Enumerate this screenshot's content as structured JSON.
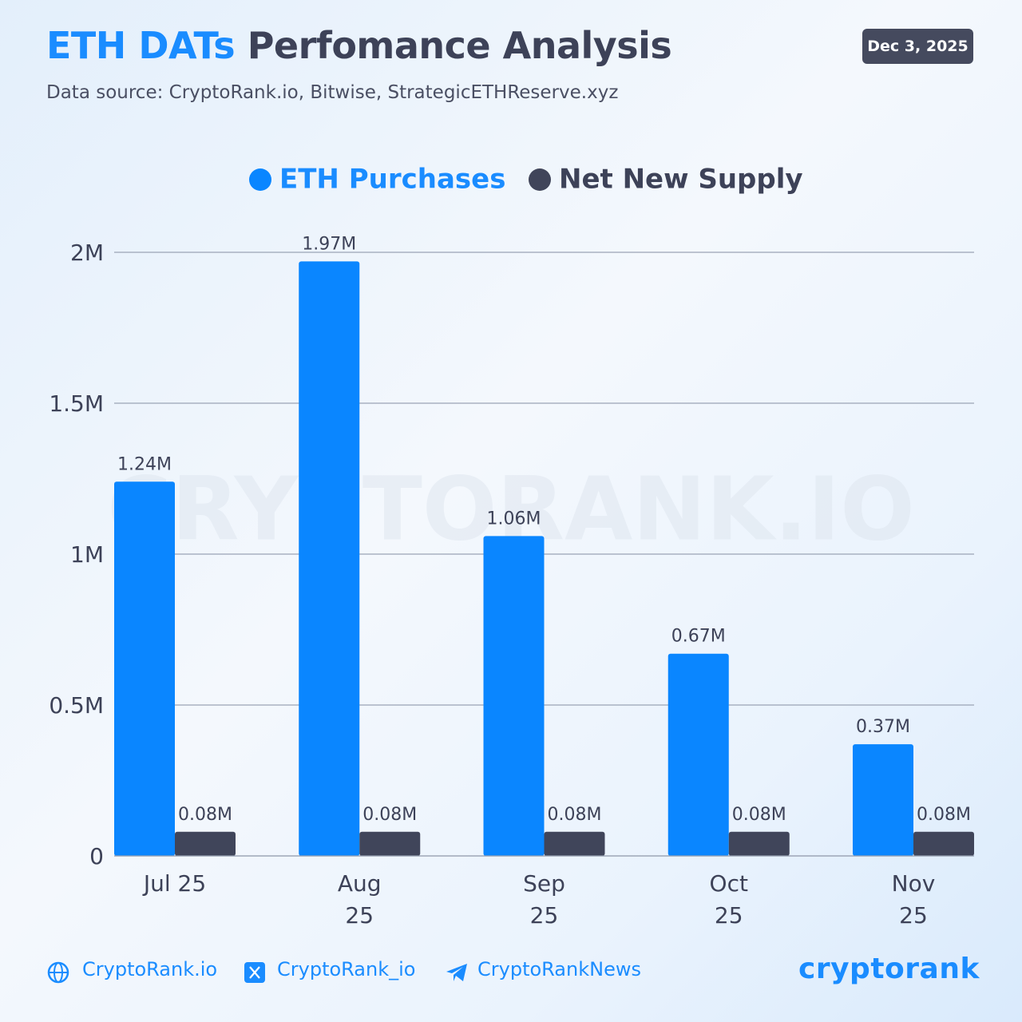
{
  "chart_data": {
    "type": "bar",
    "title_highlight": "ETH DATs",
    "title": "Perfomance Analysis",
    "subtitle": "Data source: CryptoRank.io, Bitwise, StrategicETHReserve.xyz",
    "date": "Dec 3, 2025",
    "watermark": "CRYPTORANK.IO",
    "categories": [
      "Jul 25",
      "Aug 25",
      "Sep 25",
      "Oct 25",
      "Nov 25"
    ],
    "series": [
      {
        "name": "ETH Purchases",
        "color": "#0a86ff",
        "values": [
          1240000,
          1970000,
          1060000,
          670000,
          370000
        ],
        "value_labels": [
          "1.24M",
          "1.97M",
          "1.06M",
          "0.67M",
          "0.37M"
        ]
      },
      {
        "name": "Net New Supply",
        "color": "#40455a",
        "values": [
          80000,
          80000,
          80000,
          80000,
          80000
        ],
        "value_labels": [
          "0.08M",
          "0.08M",
          "0.08M",
          "0.08M",
          "0.08M"
        ]
      }
    ],
    "ylim": [
      0,
      2000000
    ],
    "yticks": [
      0,
      {
        "value": 500000,
        "label": "0.5M"
      },
      {
        "value": 1000000,
        "label": "1M"
      },
      {
        "value": 1500000,
        "label": "1.5M"
      },
      {
        "value": 2000000,
        "label": "2M"
      }
    ],
    "grid": true
  },
  "footer": {
    "links": [
      "CryptoRank.io",
      "CryptoRank_io",
      "CryptoRankNews"
    ],
    "logo": "cryptorank"
  }
}
